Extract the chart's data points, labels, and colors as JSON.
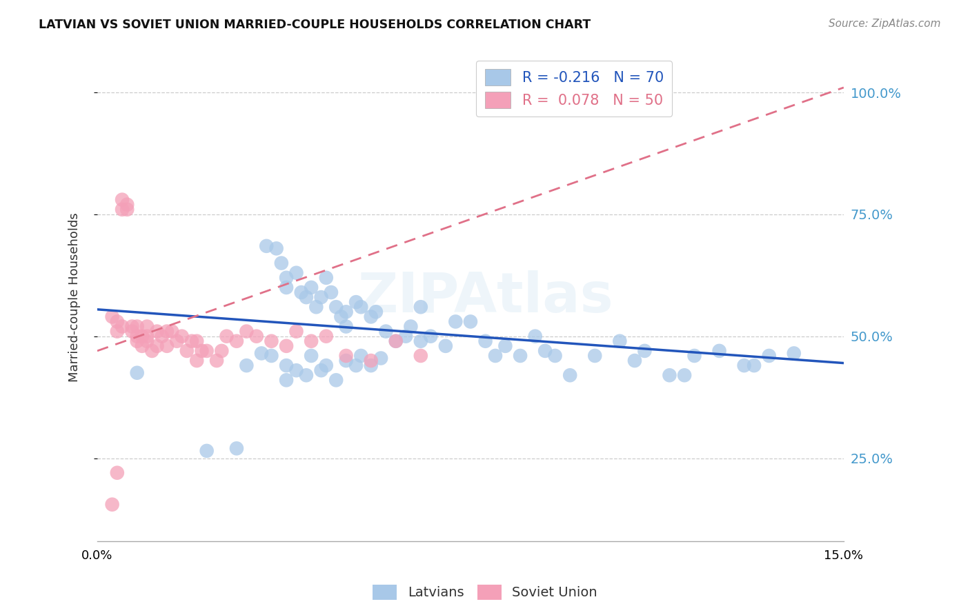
{
  "title": "LATVIAN VS SOVIET UNION MARRIED-COUPLE HOUSEHOLDS CORRELATION CHART",
  "source": "Source: ZipAtlas.com",
  "ylabel": "Married-couple Households",
  "ytick_vals": [
    0.25,
    0.5,
    0.75,
    1.0
  ],
  "ytick_labels": [
    "25.0%",
    "50.0%",
    "75.0%",
    "100.0%"
  ],
  "xlim": [
    0.0,
    0.15
  ],
  "ylim": [
    0.08,
    1.08
  ],
  "latvians_color": "#a8c8e8",
  "soviet_color": "#f4a0b8",
  "latvians_line_color": "#2255bb",
  "soviet_line_color": "#e07088",
  "watermark": "ZIPAtlas",
  "lv_line_x0": 0.0,
  "lv_line_x1": 0.15,
  "lv_line_y0": 0.555,
  "lv_line_y1": 0.445,
  "sv_line_x0": 0.0,
  "sv_line_x1": 0.15,
  "sv_line_y0": 0.47,
  "sv_line_y1": 1.01,
  "latvians_x": [
    0.008,
    0.022,
    0.028,
    0.034,
    0.036,
    0.037,
    0.038,
    0.038,
    0.04,
    0.041,
    0.042,
    0.043,
    0.044,
    0.045,
    0.046,
    0.047,
    0.048,
    0.049,
    0.05,
    0.05,
    0.052,
    0.053,
    0.055,
    0.056,
    0.058,
    0.06,
    0.062,
    0.063,
    0.065,
    0.065,
    0.067,
    0.07,
    0.072,
    0.075,
    0.078,
    0.08,
    0.082,
    0.085,
    0.088,
    0.09,
    0.092,
    0.095,
    0.1,
    0.105,
    0.108,
    0.11,
    0.115,
    0.118,
    0.12,
    0.125,
    0.13,
    0.132,
    0.135,
    0.14,
    0.038,
    0.042,
    0.045,
    0.048,
    0.052,
    0.055,
    0.03,
    0.033,
    0.035,
    0.038,
    0.04,
    0.043,
    0.046,
    0.05,
    0.053,
    0.057
  ],
  "latvians_y": [
    0.425,
    0.265,
    0.27,
    0.685,
    0.68,
    0.65,
    0.62,
    0.6,
    0.63,
    0.59,
    0.58,
    0.6,
    0.56,
    0.58,
    0.62,
    0.59,
    0.56,
    0.54,
    0.55,
    0.52,
    0.57,
    0.56,
    0.54,
    0.55,
    0.51,
    0.49,
    0.5,
    0.52,
    0.49,
    0.56,
    0.5,
    0.48,
    0.53,
    0.53,
    0.49,
    0.46,
    0.48,
    0.46,
    0.5,
    0.47,
    0.46,
    0.42,
    0.46,
    0.49,
    0.45,
    0.47,
    0.42,
    0.42,
    0.46,
    0.47,
    0.44,
    0.44,
    0.46,
    0.465,
    0.41,
    0.42,
    0.43,
    0.41,
    0.44,
    0.44,
    0.44,
    0.465,
    0.46,
    0.44,
    0.43,
    0.46,
    0.44,
    0.45,
    0.46,
    0.455
  ],
  "soviet_x": [
    0.003,
    0.004,
    0.004,
    0.005,
    0.005,
    0.005,
    0.006,
    0.006,
    0.007,
    0.007,
    0.008,
    0.008,
    0.008,
    0.009,
    0.009,
    0.01,
    0.01,
    0.01,
    0.011,
    0.012,
    0.012,
    0.013,
    0.014,
    0.014,
    0.015,
    0.016,
    0.017,
    0.018,
    0.019,
    0.02,
    0.02,
    0.021,
    0.022,
    0.024,
    0.025,
    0.026,
    0.028,
    0.03,
    0.032,
    0.035,
    0.038,
    0.04,
    0.043,
    0.046,
    0.05,
    0.055,
    0.06,
    0.065,
    0.003,
    0.004
  ],
  "soviet_y": [
    0.54,
    0.53,
    0.51,
    0.78,
    0.76,
    0.52,
    0.77,
    0.76,
    0.52,
    0.51,
    0.52,
    0.5,
    0.49,
    0.5,
    0.48,
    0.52,
    0.5,
    0.49,
    0.47,
    0.51,
    0.48,
    0.5,
    0.48,
    0.51,
    0.51,
    0.49,
    0.5,
    0.47,
    0.49,
    0.49,
    0.45,
    0.47,
    0.47,
    0.45,
    0.47,
    0.5,
    0.49,
    0.51,
    0.5,
    0.49,
    0.48,
    0.51,
    0.49,
    0.5,
    0.46,
    0.45,
    0.49,
    0.46,
    0.155,
    0.22
  ]
}
